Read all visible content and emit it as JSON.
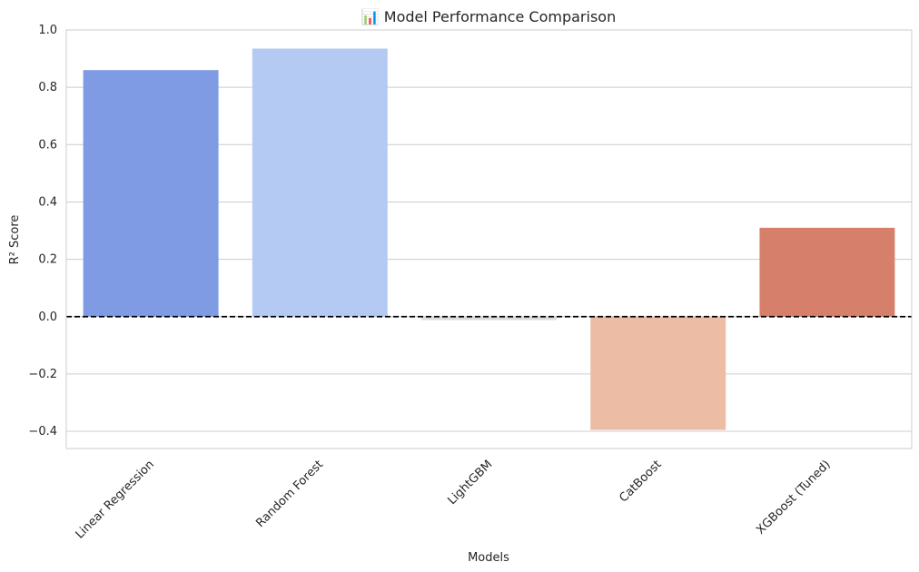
{
  "chart_data": {
    "type": "bar",
    "title": "📊 Model Performance Comparison",
    "xlabel": "Models",
    "ylabel": "R² Score",
    "categories": [
      "Linear Regression",
      "Random Forest",
      "LightGBM",
      "CatBoost",
      "XGBoost (Tuned)"
    ],
    "values": [
      0.86,
      0.935,
      -0.012,
      -0.395,
      0.31
    ],
    "colors": [
      "#7f9be3",
      "#b4caf3",
      "#dddcdc",
      "#ecbca5",
      "#d6806b"
    ],
    "ylim": [
      -0.46,
      1.0
    ],
    "yticks": [
      -0.4,
      -0.2,
      0.0,
      0.2,
      0.4,
      0.6,
      0.8,
      1.0
    ],
    "ytick_labels": [
      "−0.4",
      "−0.2",
      "0.0",
      "0.2",
      "0.4",
      "0.6",
      "0.8",
      "1.0"
    ],
    "grid": true,
    "reference_line": {
      "y": 0,
      "style": "dashed",
      "color": "#000000"
    }
  }
}
